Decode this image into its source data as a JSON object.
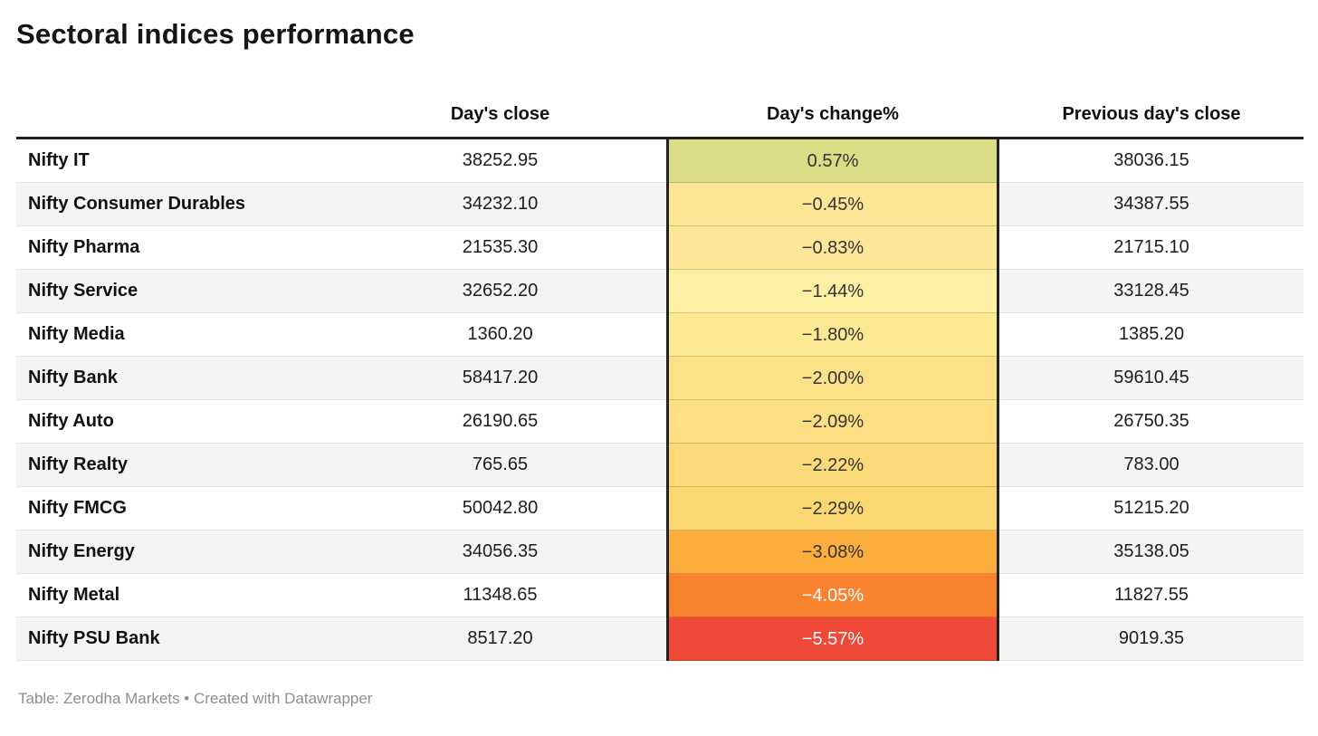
{
  "title": "Sectoral indices performance",
  "footer": "Table: Zerodha Markets • Created with Datawrapper",
  "colors": {
    "header_rule": "#1f1f1f",
    "change_column_border": "#232323",
    "row_stripe": "#f4f4f4",
    "footer_text": "#8e8e8e"
  },
  "chart_data": {
    "type": "table",
    "title": "Sectoral indices performance",
    "columns": [
      "",
      "Day's close",
      "Day's change%",
      "Previous day's close"
    ],
    "rows": [
      {
        "name": "Nifty IT",
        "close": "38252.95",
        "change": "0.57%",
        "prev": "38036.15",
        "change_bg": "#dbdc86",
        "change_fg": "#333333"
      },
      {
        "name": "Nifty Consumer Durables",
        "close": "34232.10",
        "change": "−0.45%",
        "prev": "34387.55",
        "change_bg": "#fbe695",
        "change_fg": "#333333"
      },
      {
        "name": "Nifty Pharma",
        "close": "21535.30",
        "change": "−0.83%",
        "prev": "21715.10",
        "change_bg": "#fbe797",
        "change_fg": "#333333"
      },
      {
        "name": "Nifty Service",
        "close": "32652.20",
        "change": "−1.44%",
        "prev": "33128.45",
        "change_bg": "#fdf0a5",
        "change_fg": "#333333"
      },
      {
        "name": "Nifty Media",
        "close": "1360.20",
        "change": "−1.80%",
        "prev": "1385.20",
        "change_bg": "#fbea93",
        "change_fg": "#333333"
      },
      {
        "name": "Nifty Bank",
        "close": "58417.20",
        "change": "−2.00%",
        "prev": "59610.45",
        "change_bg": "#fde189",
        "change_fg": "#333333"
      },
      {
        "name": "Nifty Auto",
        "close": "26190.65",
        "change": "−2.09%",
        "prev": "26750.35",
        "change_bg": "#fdde82",
        "change_fg": "#333333"
      },
      {
        "name": "Nifty Realty",
        "close": "765.65",
        "change": "−2.22%",
        "prev": "783.00",
        "change_bg": "#fcda79",
        "change_fg": "#333333"
      },
      {
        "name": "Nifty FMCG",
        "close": "50042.80",
        "change": "−2.29%",
        "prev": "51215.20",
        "change_bg": "#fcd873",
        "change_fg": "#333333"
      },
      {
        "name": "Nifty Energy",
        "close": "34056.35",
        "change": "−3.08%",
        "prev": "35138.05",
        "change_bg": "#fcae3d",
        "change_fg": "#333333"
      },
      {
        "name": "Nifty Metal",
        "close": "11348.65",
        "change": "−4.05%",
        "prev": "11827.55",
        "change_bg": "#f8822e",
        "change_fg": "#ffffff"
      },
      {
        "name": "Nifty PSU Bank",
        "close": "8517.20",
        "change": "−5.57%",
        "prev": "9019.35",
        "change_bg": "#ee4937",
        "change_fg": "#ffffff"
      }
    ]
  }
}
